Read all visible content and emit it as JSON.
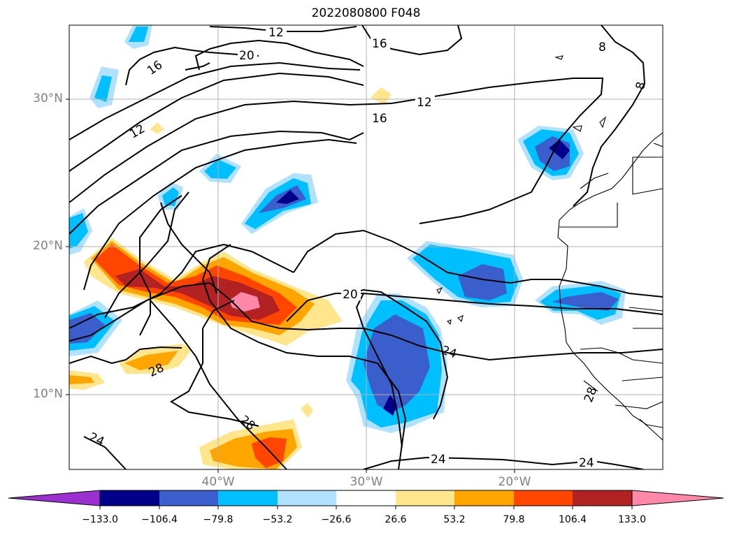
{
  "title": "2022080800 F048",
  "map": {
    "lat_labels": [
      "30°N",
      "20°N",
      "10°N"
    ],
    "lon_labels": [
      "40°W",
      "30°W",
      "20°W"
    ],
    "contour_labels": [
      "12",
      "20",
      "16",
      "16",
      "12",
      "16",
      "12",
      "8",
      "8",
      "20",
      "24",
      "28",
      "28",
      "24",
      "24",
      "24",
      "28"
    ]
  },
  "colorbar": {
    "tick_labels": [
      "−133.0",
      "−106.4",
      "−79.8",
      "−53.2",
      "−26.6",
      "26.6",
      "53.2",
      "79.8",
      "106.4",
      "133.0"
    ],
    "colors": [
      "#9b30d0",
      "#00008b",
      "#3a5fcd",
      "#00bfff",
      "#b0e2ff",
      "#ffffff",
      "#ffe68c",
      "#ffa500",
      "#ff4500",
      "#b22222",
      "#ff88aa"
    ]
  }
}
